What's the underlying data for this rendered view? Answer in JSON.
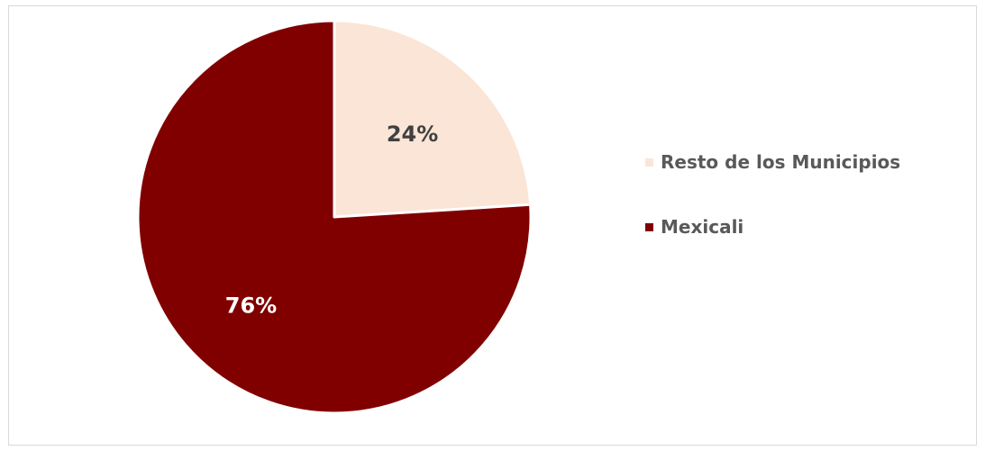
{
  "chart_data": {
    "type": "pie",
    "categories": [
      "Resto de los Municipios",
      "Mexicali"
    ],
    "values": [
      24,
      76
    ],
    "data_labels": [
      "24%",
      "76%"
    ],
    "colors": [
      "#fbe5d6",
      "#800000"
    ],
    "label_colors": [
      "#404040",
      "#ffffff"
    ],
    "slice_border_color": "#ffffff",
    "legend_position": "right",
    "start_angle": "12 o'clock, clockwise"
  }
}
